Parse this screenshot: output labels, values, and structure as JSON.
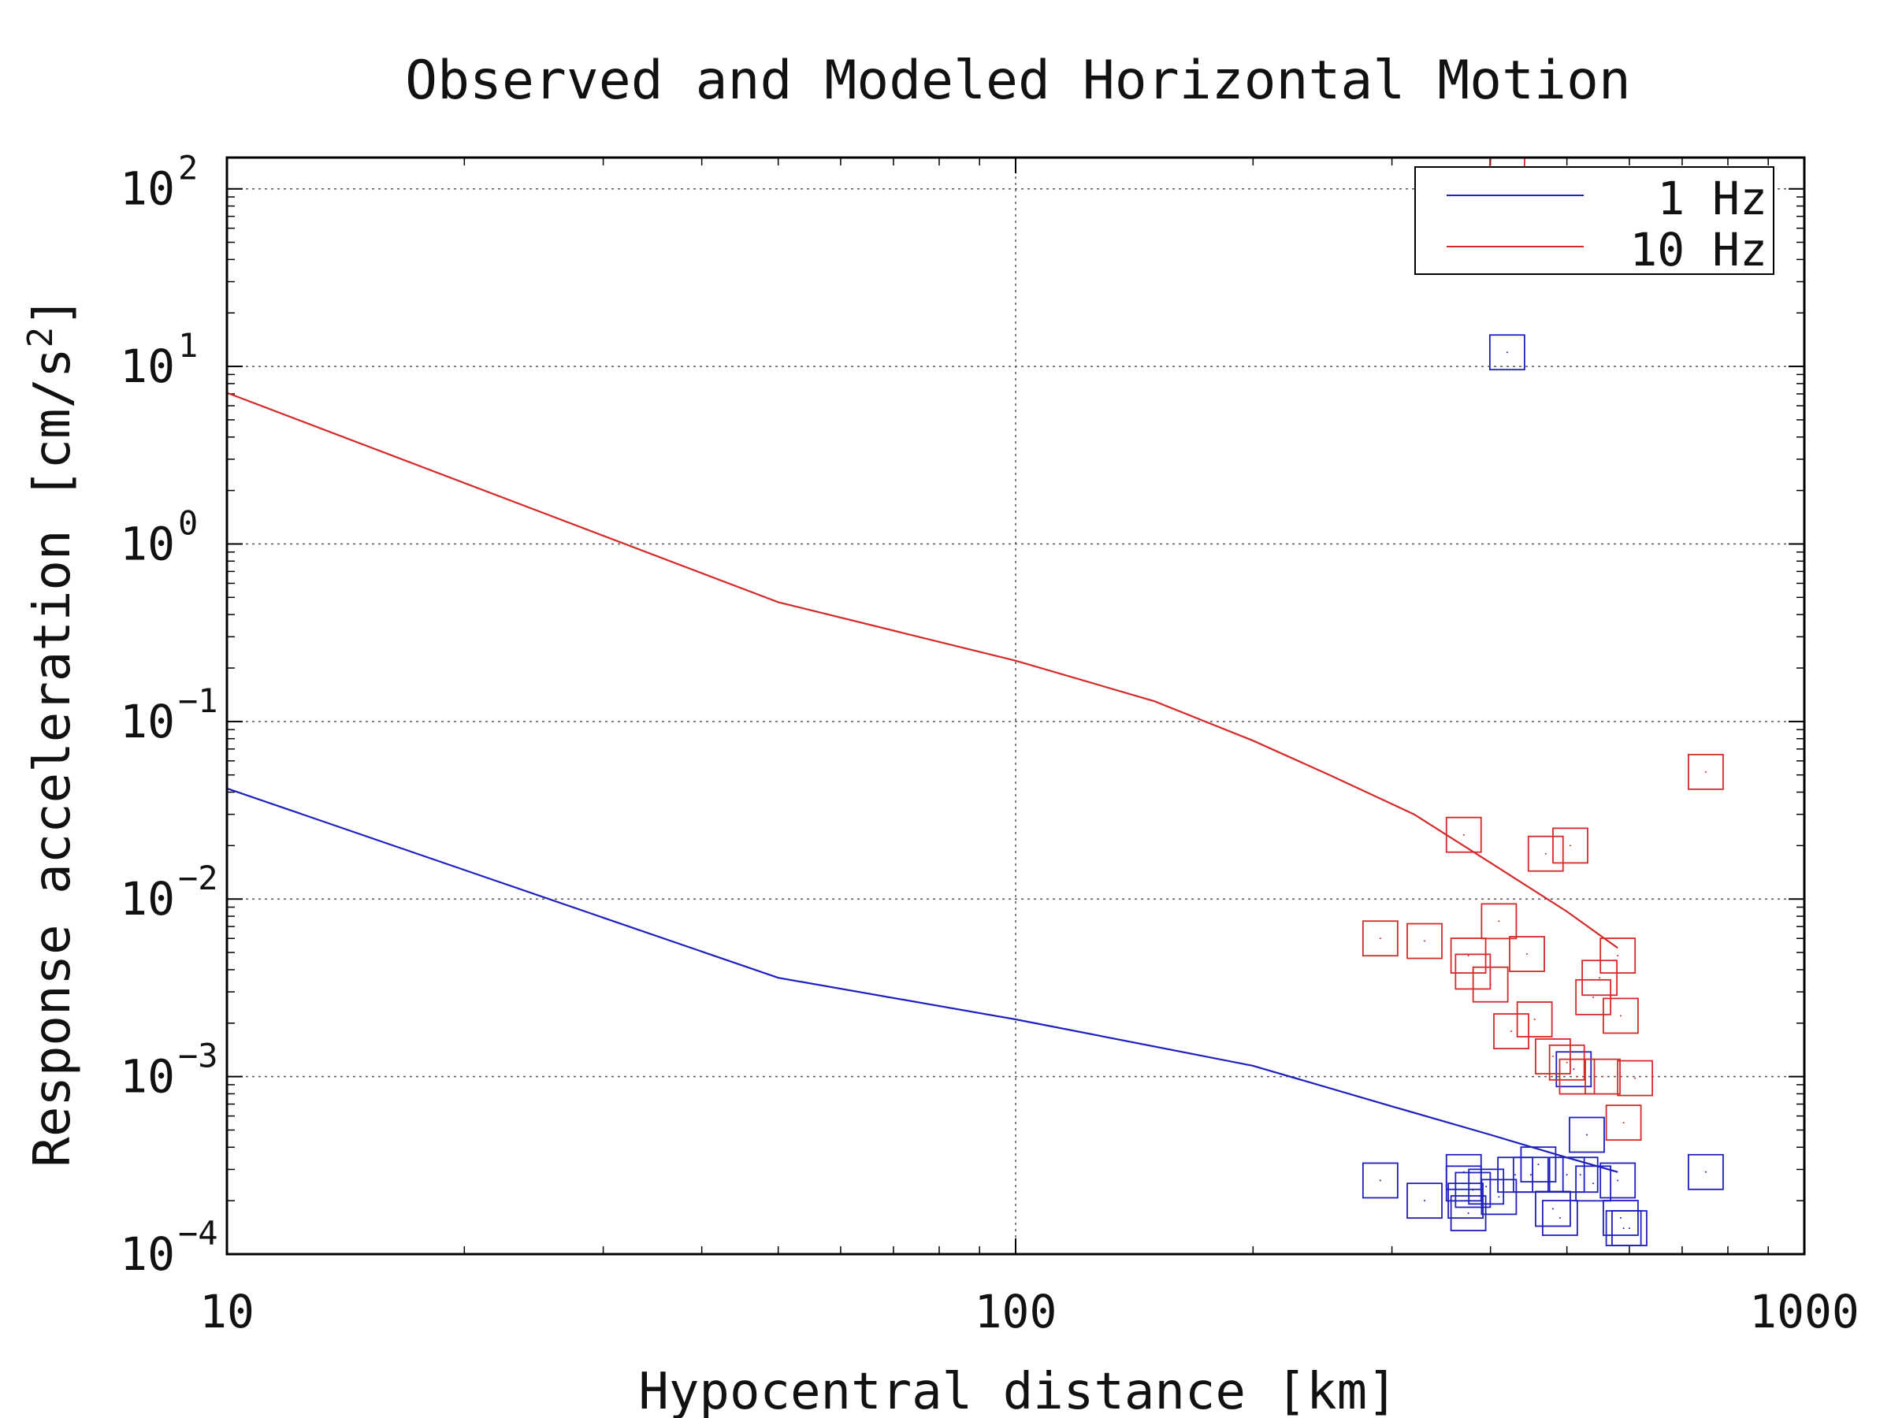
{
  "chart_data": {
    "type": "scatter",
    "title": "Observed and Modeled Horizontal Motion",
    "xlabel": "Hypocentral distance [km]",
    "ylabel": "Response acceleration [cm/s²]",
    "xscale": "log",
    "yscale": "log",
    "xlim": [
      10,
      1000
    ],
    "ylim": [
      0.0001,
      150
    ],
    "x_ticks": [
      {
        "value": 10,
        "label": "10"
      },
      {
        "value": 100,
        "label": "100"
      },
      {
        "value": 1000,
        "label": "1000"
      }
    ],
    "y_ticks": [
      {
        "value": 0.0001,
        "base": "10",
        "exp": "−4"
      },
      {
        "value": 0.001,
        "base": "10",
        "exp": "−3"
      },
      {
        "value": 0.01,
        "base": "10",
        "exp": "−2"
      },
      {
        "value": 0.1,
        "base": "10",
        "exp": "−1"
      },
      {
        "value": 1,
        "base": "10",
        "exp": "0"
      },
      {
        "value": 10,
        "base": "10",
        "exp": "1"
      },
      {
        "value": 100,
        "base": "10",
        "exp": "2"
      }
    ],
    "grid": true,
    "legend_position": "top-right",
    "series": [
      {
        "name": "1 Hz",
        "color": "#1f1fbf",
        "line": {
          "x": [
            10,
            50,
            100,
            200,
            300,
            400,
            500,
            580
          ],
          "y": [
            0.042,
            0.0036,
            0.0021,
            0.00115,
            0.00068,
            0.00047,
            0.00035,
            0.00029
          ]
        },
        "points": {
          "x": [
            420,
            290,
            330,
            370,
            370,
            372,
            375,
            380,
            395,
            410,
            430,
            450,
            460,
            480,
            490,
            500,
            510,
            520,
            530,
            540,
            580,
            585,
            590,
            600,
            750
          ],
          "y": [
            12,
            0.00026,
            0.0002,
            0.00029,
            0.00025,
            0.0002,
            0.00017,
            0.00023,
            0.00024,
            0.00021,
            0.00028,
            0.00028,
            0.00032,
            0.00018,
            0.00016,
            0.00028,
            0.0011,
            0.00028,
            0.00047,
            0.00025,
            0.00026,
            0.00016,
            0.00014,
            0.00014,
            0.00029
          ]
        }
      },
      {
        "name": "10 Hz",
        "color": "#d42a2a",
        "line": {
          "x": [
            10,
            50,
            100,
            150,
            200,
            250,
            320,
            400,
            500,
            580
          ],
          "y": [
            7.1,
            0.47,
            0.22,
            0.13,
            0.078,
            0.05,
            0.03,
            0.016,
            0.0085,
            0.0053
          ]
        },
        "points": {
          "x": [
            420,
            290,
            330,
            370,
            375,
            380,
            400,
            410,
            425,
            445,
            455,
            470,
            480,
            500,
            505,
            515,
            540,
            550,
            555,
            580,
            585,
            590,
            610,
            750
          ],
          "y": [
            120,
            0.006,
            0.0058,
            0.023,
            0.0048,
            0.0039,
            0.0033,
            0.0075,
            0.0018,
            0.0049,
            0.0021,
            0.018,
            0.0013,
            0.0012,
            0.02,
            0.001,
            0.0028,
            0.0036,
            0.001,
            0.0048,
            0.0022,
            0.00055,
            0.00098,
            0.052
          ]
        }
      }
    ]
  }
}
